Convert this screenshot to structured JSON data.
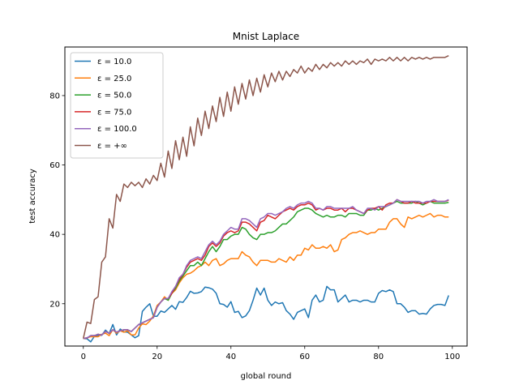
{
  "chart_data": {
    "type": "line",
    "title": "Mnist Laplace",
    "xlabel": "global round",
    "ylabel": "test accuracy",
    "xlim": [
      -5,
      104
    ],
    "ylim": [
      7.8,
      94.0
    ],
    "xticks": [
      0,
      20,
      40,
      60,
      80,
      100
    ],
    "yticks": [
      20,
      40,
      60,
      80
    ],
    "grid": false,
    "legend_position": "top-left",
    "series": [
      {
        "name": "ε = 10.0",
        "color": "#1f77b4",
        "values": [
          10.0,
          9.9,
          9.0,
          10.6,
          10.9,
          10.9,
          12.4,
          11.4,
          14.0,
          11.0,
          12.7,
          11.9,
          11.8,
          11.0,
          10.2,
          10.8,
          17.8,
          19.0,
          20.0,
          16.4,
          16.4,
          17.9,
          17.5,
          18.5,
          19.5,
          18.4,
          20.6,
          20.4,
          21.8,
          23.6,
          23.0,
          23.1,
          23.5,
          24.8,
          24.6,
          24.2,
          23.0,
          20.0,
          19.8,
          19.0,
          20.6,
          17.5,
          17.8,
          16.0,
          16.5,
          18.0,
          21.0,
          24.5,
          22.5,
          24.5,
          21.0,
          19.5,
          20.5,
          20.0,
          20.3,
          18.0,
          17.0,
          15.5,
          17.5,
          18.0,
          18.5,
          16.0,
          21.0,
          22.5,
          20.5,
          21.0,
          25.0,
          24.0,
          24.0,
          20.5,
          21.5,
          22.5,
          20.5,
          21.0,
          21.0,
          20.5,
          21.0,
          21.0,
          20.5,
          20.5,
          23.0,
          23.8,
          23.5,
          24.0,
          23.5,
          20.0,
          20.0,
          19.0,
          17.5,
          18.0,
          18.0,
          17.0,
          17.2,
          17.0,
          18.5,
          19.5,
          19.8,
          19.8,
          19.5,
          22.4
        ]
      },
      {
        "name": "ε = 25.0",
        "color": "#ff7f0e",
        "values": [
          10.0,
          10.2,
          10.5,
          10.5,
          10.5,
          11.2,
          11.5,
          10.8,
          12.5,
          11.5,
          12.2,
          11.8,
          12.2,
          11.0,
          11.0,
          13.0,
          14.2,
          14.0,
          15.0,
          16.5,
          19.5,
          20.5,
          22.0,
          21.0,
          23.0,
          24.0,
          26.0,
          27.5,
          28.5,
          28.8,
          29.5,
          30.5,
          31.0,
          32.0,
          31.0,
          32.5,
          33.0,
          31.0,
          31.5,
          32.5,
          33.0,
          33.0,
          33.0,
          35.0,
          34.0,
          33.5,
          32.0,
          31.0,
          32.5,
          32.5,
          32.5,
          32.0,
          32.0,
          33.0,
          32.5,
          32.0,
          33.5,
          32.5,
          34.0,
          34.0,
          36.0,
          35.5,
          37.0,
          36.0,
          36.0,
          36.5,
          36.0,
          37.0,
          35.0,
          35.5,
          38.5,
          39.0,
          40.0,
          40.5,
          40.5,
          41.0,
          40.5,
          40.0,
          40.5,
          40.5,
          41.5,
          41.5,
          41.5,
          43.5,
          44.5,
          44.5,
          43.0,
          42.0,
          45.0,
          44.5,
          45.0,
          45.5,
          45.0,
          45.5,
          46.0,
          45.0,
          45.5,
          45.5,
          45.0,
          45.0
        ]
      },
      {
        "name": "ε = 50.0",
        "color": "#2ca02c",
        "values": [
          10.0,
          10.1,
          10.8,
          10.8,
          11.2,
          11.0,
          12.0,
          11.5,
          12.5,
          11.8,
          12.2,
          12.5,
          12.5,
          12.0,
          13.0,
          14.0,
          14.5,
          15.0,
          15.5,
          16.0,
          19.0,
          20.5,
          21.5,
          21.0,
          23.0,
          24.5,
          26.5,
          28.0,
          29.5,
          31.0,
          31.0,
          32.0,
          31.0,
          33.0,
          35.0,
          36.5,
          35.0,
          36.5,
          38.5,
          38.5,
          39.5,
          40.0,
          40.0,
          42.0,
          41.5,
          40.0,
          39.0,
          38.5,
          40.0,
          40.0,
          40.5,
          40.5,
          41.0,
          42.0,
          43.0,
          43.0,
          44.0,
          45.0,
          46.5,
          47.0,
          47.5,
          47.5,
          47.0,
          46.0,
          45.5,
          45.0,
          45.5,
          45.0,
          45.0,
          45.5,
          45.5,
          45.0,
          46.0,
          46.0,
          46.0,
          45.5,
          45.5,
          47.0,
          47.0,
          47.5,
          47.0,
          47.5,
          48.0,
          48.5,
          49.0,
          49.5,
          49.0,
          49.0,
          49.0,
          49.0,
          49.5,
          49.0,
          48.5,
          49.0,
          49.5,
          49.0,
          49.0,
          49.0,
          49.0,
          49.2
        ]
      },
      {
        "name": "ε = 75.0",
        "color": "#d62728",
        "values": [
          10.0,
          10.1,
          10.8,
          10.8,
          11.2,
          11.0,
          12.0,
          11.5,
          12.5,
          11.8,
          12.2,
          12.5,
          12.5,
          12.0,
          13.0,
          14.0,
          14.5,
          15.0,
          15.5,
          16.0,
          19.0,
          20.5,
          21.5,
          21.5,
          23.0,
          25.0,
          27.0,
          28.5,
          30.5,
          32.0,
          32.5,
          33.0,
          32.5,
          34.0,
          36.5,
          37.5,
          36.5,
          37.5,
          39.5,
          40.5,
          41.0,
          40.5,
          41.0,
          43.5,
          43.5,
          43.0,
          42.0,
          41.0,
          43.5,
          44.0,
          45.5,
          45.0,
          44.5,
          45.5,
          46.5,
          47.0,
          47.5,
          47.0,
          48.0,
          48.5,
          48.5,
          49.0,
          48.5,
          47.0,
          47.5,
          47.0,
          47.5,
          47.5,
          47.0,
          47.0,
          47.5,
          46.5,
          47.5,
          47.5,
          47.0,
          46.5,
          46.0,
          47.0,
          47.5,
          47.5,
          48.0,
          47.0,
          48.5,
          49.0,
          49.0,
          50.0,
          49.5,
          49.0,
          49.0,
          49.5,
          49.0,
          49.0,
          49.0,
          49.0,
          49.5,
          49.5,
          49.5,
          49.5,
          49.5,
          49.8
        ]
      },
      {
        "name": "ε = 100.0",
        "color": "#9467bd",
        "values": [
          10.0,
          10.2,
          10.8,
          10.8,
          11.2,
          11.0,
          12.0,
          11.5,
          12.5,
          11.8,
          12.2,
          12.5,
          12.5,
          12.0,
          13.0,
          14.0,
          14.5,
          15.0,
          15.5,
          16.0,
          19.0,
          20.5,
          21.5,
          21.5,
          23.5,
          25.0,
          27.5,
          28.5,
          31.0,
          32.5,
          33.0,
          33.5,
          33.0,
          35.0,
          37.0,
          38.0,
          37.0,
          38.0,
          40.0,
          41.0,
          42.0,
          41.5,
          41.5,
          44.5,
          44.5,
          44.0,
          43.0,
          42.0,
          44.5,
          45.0,
          46.0,
          46.0,
          45.5,
          46.0,
          46.5,
          47.5,
          48.0,
          47.5,
          48.5,
          49.0,
          49.0,
          49.5,
          49.0,
          47.5,
          47.5,
          47.0,
          48.0,
          48.0,
          47.5,
          47.5,
          47.5,
          47.5,
          47.5,
          48.0,
          47.0,
          46.5,
          46.0,
          47.5,
          47.5,
          47.0,
          48.0,
          48.0,
          48.0,
          48.5,
          49.0,
          50.0,
          49.5,
          49.5,
          49.5,
          49.5,
          49.5,
          49.5,
          49.0,
          49.5,
          49.5,
          50.0,
          49.5,
          49.5,
          49.5,
          50.0
        ]
      },
      {
        "name": "ε = +∞",
        "color": "#8c564b",
        "values": [
          10.0,
          14.7,
          14.3,
          21.2,
          22.0,
          32.0,
          33.5,
          44.5,
          41.8,
          51.5,
          49.5,
          54.5,
          53.5,
          55.0,
          54.0,
          55.0,
          53.5,
          56.0,
          54.5,
          57.0,
          55.5,
          60.5,
          56.5,
          64.0,
          59.0,
          67.0,
          61.5,
          68.0,
          62.5,
          71.0,
          65.5,
          73.5,
          68.5,
          75.5,
          70.5,
          77.0,
          72.5,
          79.5,
          74.0,
          81.0,
          75.5,
          82.5,
          77.5,
          83.5,
          79.0,
          84.5,
          80.0,
          85.0,
          81.0,
          86.0,
          82.5,
          86.5,
          84.0,
          87.0,
          84.5,
          87.0,
          85.5,
          87.5,
          86.5,
          88.5,
          86.5,
          88.0,
          87.0,
          89.0,
          87.5,
          89.0,
          88.0,
          89.5,
          88.5,
          89.5,
          88.5,
          90.0,
          89.0,
          90.0,
          89.0,
          90.0,
          89.5,
          90.5,
          89.0,
          90.5,
          90.0,
          90.5,
          90.0,
          91.0,
          90.0,
          91.0,
          90.0,
          91.0,
          90.0,
          91.0,
          90.5,
          91.0,
          90.5,
          91.0,
          90.5,
          91.0,
          91.0,
          91.0,
          91.0,
          91.5
        ]
      }
    ]
  }
}
